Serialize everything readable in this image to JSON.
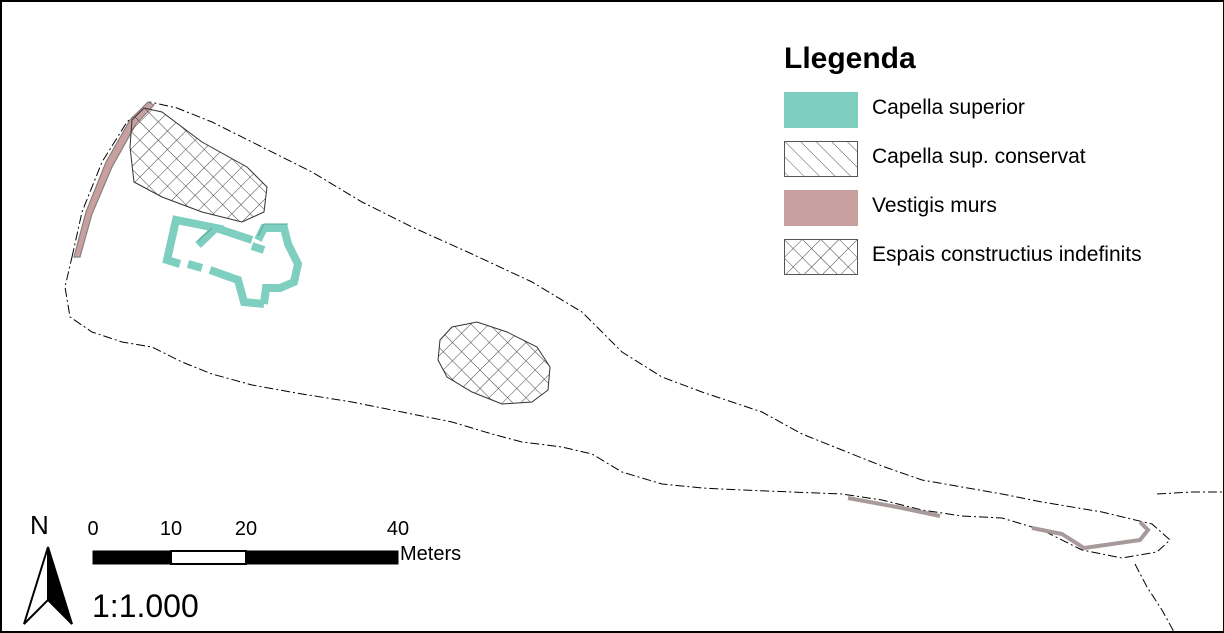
{
  "map": {
    "legend": {
      "title": "Llegenda",
      "items": [
        {
          "label": "Capella superior",
          "style": "solid-fill",
          "fill": "#7fcfc0",
          "icon": "teal-fill-swatch"
        },
        {
          "label": "Capella sup. conservat",
          "style": "diagonal-hatch",
          "fill": "#ffffff",
          "icon": "diagonal-hatch-swatch"
        },
        {
          "label": "Vestigis murs",
          "style": "solid-fill",
          "fill": "#c9a0a0",
          "icon": "rose-fill-swatch"
        },
        {
          "label": "Espais constructius indefinits",
          "style": "cross-hatch",
          "fill": "#ffffff",
          "icon": "cross-hatch-swatch"
        }
      ]
    },
    "north_arrow": {
      "label": "N"
    },
    "scale_bar": {
      "ticks": [
        "0",
        "10",
        "20",
        "40"
      ],
      "units": "Meters",
      "ratio": "1:1.000"
    },
    "colors": {
      "chapel": "#7fcfc0",
      "walls": "#c9a0a0",
      "outline": "#000000"
    }
  }
}
